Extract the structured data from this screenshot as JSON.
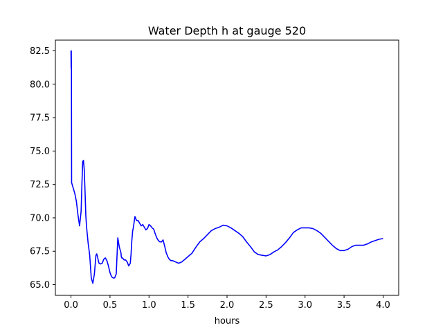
{
  "chart_data": {
    "type": "line",
    "title": "Water Depth h at gauge 520",
    "xlabel": "hours",
    "ylabel": "",
    "xlim": [
      -0.2,
      4.2
    ],
    "ylim": [
      64.2,
      83.3
    ],
    "xticks": [
      0.0,
      0.5,
      1.0,
      1.5,
      2.0,
      2.5,
      3.0,
      3.5,
      4.0
    ],
    "xtick_labels": [
      "0.0",
      "0.5",
      "1.0",
      "1.5",
      "2.0",
      "2.5",
      "3.0",
      "3.5",
      "4.0"
    ],
    "yticks": [
      65.0,
      67.5,
      70.0,
      72.5,
      75.0,
      77.5,
      80.0,
      82.5
    ],
    "ytick_labels": [
      "65.0",
      "67.5",
      "70.0",
      "72.5",
      "75.0",
      "77.5",
      "80.0",
      "82.5"
    ],
    "grid": false,
    "series": [
      {
        "color": "#0000ff",
        "x": [
          0.0,
          0.002,
          0.004,
          0.006,
          0.008,
          0.01,
          0.03,
          0.05,
          0.07,
          0.09,
          0.11,
          0.13,
          0.14,
          0.15,
          0.16,
          0.17,
          0.18,
          0.19,
          0.2,
          0.22,
          0.24,
          0.26,
          0.28,
          0.3,
          0.31,
          0.32,
          0.33,
          0.34,
          0.35,
          0.36,
          0.38,
          0.4,
          0.42,
          0.44,
          0.46,
          0.48,
          0.5,
          0.52,
          0.54,
          0.56,
          0.58,
          0.6,
          0.62,
          0.64,
          0.645,
          0.65,
          0.66,
          0.68,
          0.7,
          0.72,
          0.74,
          0.76,
          0.77,
          0.78,
          0.79,
          0.8,
          0.82,
          0.84,
          0.86,
          0.88,
          0.9,
          0.92,
          0.94,
          0.96,
          0.98,
          1.0,
          1.02,
          1.04,
          1.06,
          1.08,
          1.1,
          1.12,
          1.14,
          1.16,
          1.18,
          1.2,
          1.22,
          1.24,
          1.26,
          1.28,
          1.3,
          1.32,
          1.34,
          1.36,
          1.38,
          1.4,
          1.42,
          1.44,
          1.46,
          1.48,
          1.5,
          1.55,
          1.6,
          1.65,
          1.7,
          1.75,
          1.8,
          1.85,
          1.9,
          1.95,
          2.0,
          2.05,
          2.1,
          2.15,
          2.2,
          2.25,
          2.3,
          2.35,
          2.4,
          2.45,
          2.5,
          2.55,
          2.6,
          2.65,
          2.7,
          2.75,
          2.8,
          2.85,
          2.9,
          2.95,
          3.0,
          3.05,
          3.1,
          3.15,
          3.2,
          3.25,
          3.3,
          3.35,
          3.4,
          3.45,
          3.5,
          3.55,
          3.6,
          3.65,
          3.7,
          3.75,
          3.8,
          3.85,
          3.9,
          3.95,
          4.0
        ],
        "y": [
          82.5,
          81.2,
          82.5,
          81.0,
          72.6,
          72.6,
          72.2,
          71.8,
          71.2,
          70.2,
          69.4,
          70.5,
          72.5,
          74.2,
          74.3,
          73.6,
          72.0,
          70.2,
          69.3,
          68.1,
          67.2,
          65.5,
          65.1,
          65.8,
          66.5,
          67.2,
          67.3,
          67.1,
          66.8,
          66.6,
          66.55,
          66.6,
          66.9,
          67.0,
          66.8,
          66.4,
          65.9,
          65.6,
          65.5,
          65.5,
          65.8,
          68.5,
          67.8,
          67.4,
          67.1,
          67.0,
          67.0,
          66.85,
          66.85,
          66.7,
          66.4,
          66.6,
          67.3,
          68.3,
          69.0,
          69.3,
          70.1,
          69.8,
          69.8,
          69.6,
          69.4,
          69.5,
          69.3,
          69.1,
          69.2,
          69.5,
          69.4,
          69.25,
          69.15,
          68.8,
          68.5,
          68.3,
          68.2,
          68.2,
          68.35,
          67.9,
          67.4,
          67.1,
          66.9,
          66.8,
          66.8,
          66.75,
          66.7,
          66.65,
          66.6,
          66.65,
          66.7,
          66.8,
          66.9,
          67.0,
          67.1,
          67.35,
          67.8,
          68.2,
          68.45,
          68.75,
          69.05,
          69.2,
          69.3,
          69.45,
          69.4,
          69.25,
          69.05,
          68.85,
          68.6,
          68.2,
          67.85,
          67.45,
          67.25,
          67.2,
          67.15,
          67.25,
          67.45,
          67.6,
          67.85,
          68.15,
          68.5,
          68.9,
          69.1,
          69.25,
          69.25,
          69.25,
          69.2,
          69.05,
          68.85,
          68.55,
          68.25,
          67.95,
          67.7,
          67.55,
          67.55,
          67.65,
          67.85,
          67.95,
          67.95,
          67.95,
          68.05,
          68.2,
          68.3,
          68.4,
          68.45
        ]
      }
    ]
  }
}
